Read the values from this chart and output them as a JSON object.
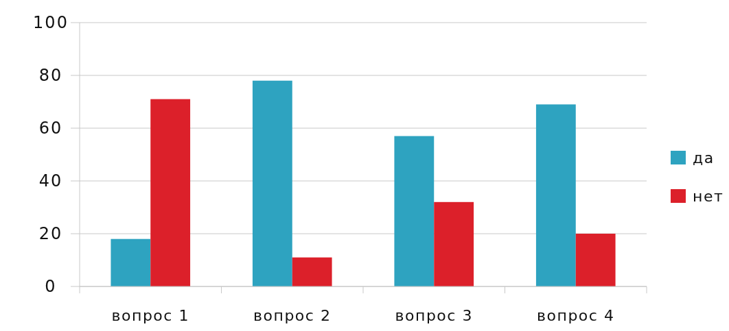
{
  "chart_data": {
    "type": "bar",
    "categories": [
      "вопрос 1",
      "вопрос 2",
      "вопрос 3",
      "вопрос 4"
    ],
    "series": [
      {
        "name": "да",
        "color": "#2ea3c0",
        "values": [
          18,
          78,
          57,
          69
        ]
      },
      {
        "name": "нет",
        "color": "#dc202a",
        "values": [
          71,
          11,
          32,
          20
        ]
      }
    ],
    "ylim": [
      0,
      100
    ],
    "yticks": [
      0,
      20,
      40,
      60,
      80,
      100
    ],
    "grid": "y",
    "legend": "right"
  }
}
